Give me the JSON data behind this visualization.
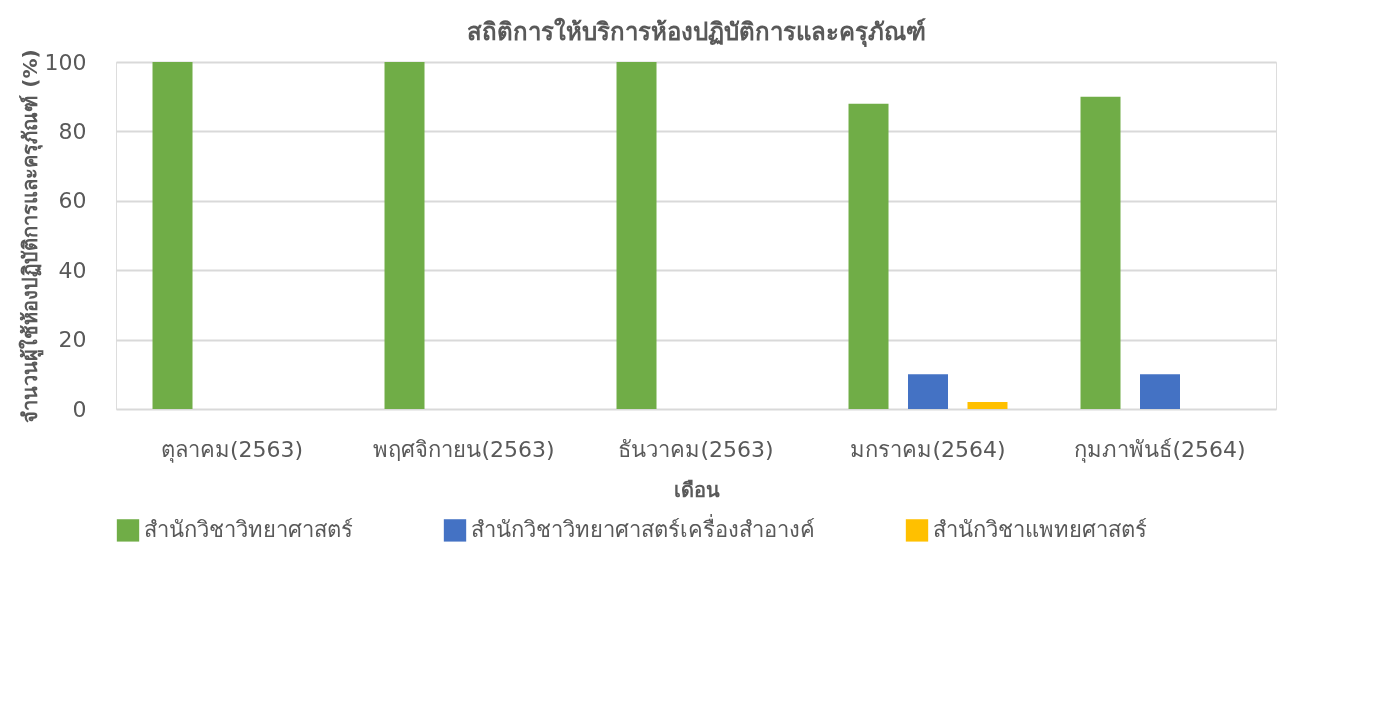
{
  "chart_data": {
    "type": "bar",
    "title": "สถิติการให้บริการห้องปฏิบัติการและครุภัณฑ์",
    "xlabel": "เดือน",
    "ylabel": "จำนวนผู้ใช้ห้องปฏิบัติการและครุภัณฑ์ (%)",
    "categories": [
      "ตุลาคม(2563)",
      "พฤศจิกายน(2563)",
      "ธันวาคม(2563)",
      "มกราคม(2564)",
      "กุมภาพันธ์(2564)"
    ],
    "series": [
      {
        "name": "สำนักวิชาวิทยาศาสตร์",
        "color": "#70ad47",
        "values": [
          100,
          100,
          100,
          88,
          90
        ]
      },
      {
        "name": "สำนักวิชาวิทยาศาสตร์เครื่องสำอางค์",
        "color": "#4472c4",
        "values": [
          0,
          0,
          0,
          10,
          10
        ]
      },
      {
        "name": "สำนักวิชาแพทยศาสตร์",
        "color": "#ffc000",
        "values": [
          0,
          0,
          0,
          2,
          0
        ]
      }
    ],
    "ylim": [
      0,
      100
    ],
    "yticks": [
      0,
      20,
      40,
      60,
      80,
      100
    ],
    "grid": "y",
    "legend": "bottom"
  }
}
